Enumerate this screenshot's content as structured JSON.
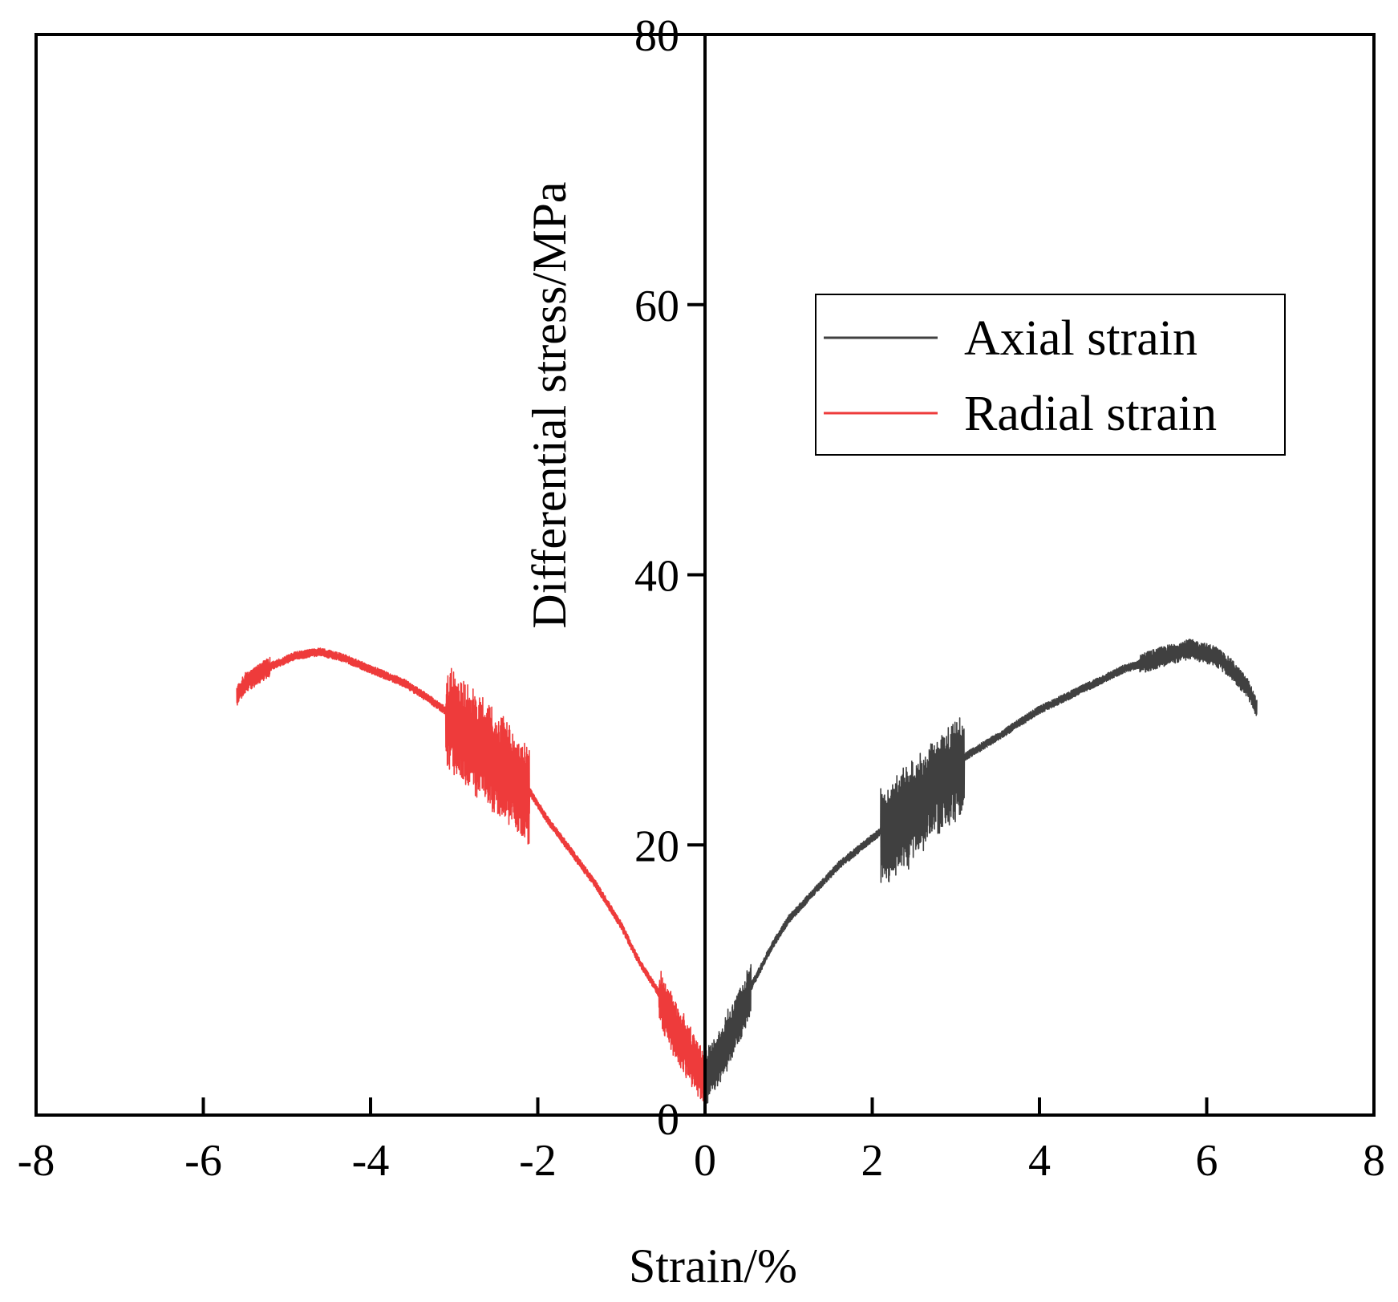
{
  "chart_data": {
    "type": "line",
    "title": "",
    "xlabel": "Strain/%",
    "ylabel": "Differential stress/MPa",
    "xlim": [
      -8,
      8
    ],
    "ylim": [
      0,
      80
    ],
    "xticks": [
      -8,
      -6,
      -4,
      -2,
      0,
      2,
      4,
      6,
      8
    ],
    "yticks": [
      0,
      20,
      40,
      60,
      80
    ],
    "xtick_labels": [
      "-8",
      "-6",
      "-4",
      "-2",
      "0",
      "2",
      "4",
      "6",
      "8"
    ],
    "ytick_labels": [
      "0",
      "20",
      "40",
      "60",
      "80"
    ],
    "grid": false,
    "legend_position": "top-right",
    "series": [
      {
        "name": "Axial strain",
        "color": "#404040",
        "x": [
          0.0,
          0.1,
          0.2,
          0.3,
          0.4,
          0.55,
          0.8,
          1.0,
          1.3,
          1.6,
          1.9,
          2.1,
          2.4,
          2.7,
          3.0,
          3.1,
          3.5,
          4.0,
          4.5,
          5.0,
          5.5,
          5.8,
          6.1,
          6.3,
          6.5,
          6.6
        ],
        "y": [
          3.0,
          4.0,
          5.0,
          6.2,
          7.5,
          9.5,
          12.5,
          14.5,
          16.5,
          18.5,
          20.0,
          21.0,
          22.5,
          24.5,
          26.0,
          26.5,
          28.0,
          30.0,
          31.5,
          33.0,
          34.0,
          34.5,
          34.0,
          33.0,
          31.5,
          30.0
        ]
      },
      {
        "name": "Radial strain",
        "color": "#ee3b3b",
        "x": [
          0.0,
          -0.1,
          -0.2,
          -0.35,
          -0.5,
          -0.8,
          -1.0,
          -1.3,
          -1.6,
          -1.9,
          -2.1,
          -2.4,
          -2.7,
          -3.0,
          -3.3,
          -3.6,
          -4.0,
          -4.3,
          -4.6,
          -4.9,
          -5.2,
          -5.5,
          -5.6
        ],
        "y": [
          3.0,
          4.0,
          5.0,
          6.5,
          8.5,
          11.5,
          14.0,
          17.0,
          19.5,
          22.0,
          24.0,
          26.0,
          27.8,
          29.5,
          30.8,
          32.0,
          33.0,
          33.8,
          34.3,
          34.0,
          33.2,
          32.0,
          31.0
        ]
      }
    ],
    "series_noise": [
      {
        "x_from": 0.0,
        "x_to": 0.55,
        "amplitude": 4.0
      },
      {
        "x_from": 2.1,
        "x_to": 3.1,
        "amplitude": 7.0
      },
      {
        "x_from": 5.2,
        "x_to": 6.6,
        "amplitude": 1.5
      }
    ]
  }
}
